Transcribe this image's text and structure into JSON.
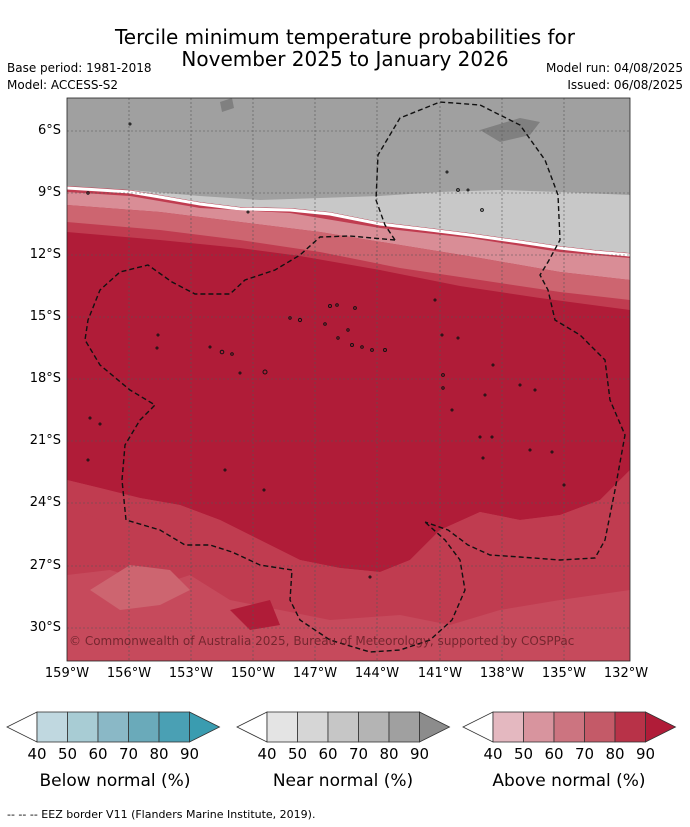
{
  "title": {
    "line1": "Tercile minimum temperature probabilities for",
    "line2": "November 2025 to January 2026"
  },
  "meta": {
    "base_period": "Base period: 1981-2018",
    "model": "Model: ACCESS-S2",
    "model_run": "Model run: 04/08/2025",
    "issued": "Issued: 06/08/2025"
  },
  "map": {
    "lat_labels": [
      "6°S",
      "9°S",
      "12°S",
      "15°S",
      "18°S",
      "21°S",
      "24°S",
      "27°S",
      "30°S"
    ],
    "lon_labels": [
      "159°W",
      "156°W",
      "153°W",
      "150°W",
      "147°W",
      "144°W",
      "141°W",
      "138°W",
      "135°W",
      "132°W"
    ],
    "copyright": "© Commonwealth of Australia 2025, Bureau of Meteorology, supported by COSPPac",
    "colors": {
      "near_normal_dark": "#a0a0a0",
      "above_90": "#b01c38",
      "above_80": "#c03c50",
      "above_70": "#cd6570",
      "above_60": "#d98d96"
    }
  },
  "legend": {
    "ticks": [
      "40",
      "50",
      "60",
      "70",
      "80",
      "90"
    ],
    "below": {
      "caption": "Below normal (%)",
      "colors": [
        "#ffffff",
        "#c0d8e0",
        "#a8ccd4",
        "#8ab8c6",
        "#6aaaba",
        "#4aa0b4",
        "#3a9cb0"
      ]
    },
    "near": {
      "caption": "Near normal (%)",
      "colors": [
        "#ffffff",
        "#e4e4e4",
        "#d6d6d6",
        "#c6c6c6",
        "#b4b4b4",
        "#a0a0a0",
        "#8c8c8c"
      ]
    },
    "above": {
      "caption": "Above normal (%)",
      "colors": [
        "#ffffff",
        "#e4b8c0",
        "#d8949e",
        "#cc7480",
        "#c45a68",
        "#b83248",
        "#b01c38"
      ]
    }
  },
  "footnote": "--  --  -- EEZ border V11 (Flanders Marine Institute, 2019)."
}
